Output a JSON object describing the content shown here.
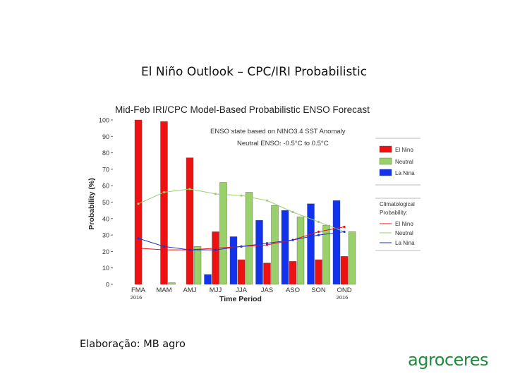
{
  "slide": {
    "title": "El Niño Outlook – CPC/IRI Probabilistic",
    "footer": "Elaboração: MB agro",
    "logo_text": "agroceres",
    "logo_color": "#1f8a3c"
  },
  "chart_data": {
    "type": "bar",
    "title": "Mid-Feb IRI/CPC Model-Based Probabilistic ENSO Forecast",
    "ylabel": "Probability (%)",
    "xlabel": "Time Period",
    "ylim": [
      0,
      100
    ],
    "yticks": [
      0,
      10,
      20,
      30,
      40,
      50,
      60,
      70,
      80,
      90,
      100
    ],
    "categories": [
      "FMA",
      "MAM",
      "AMJ",
      "MJJ",
      "JJA",
      "JAS",
      "ASO",
      "SON",
      "OND"
    ],
    "year_labels": [
      {
        "text": "2016",
        "category": "FMA"
      },
      {
        "text": "2016",
        "category": "OND"
      }
    ],
    "annotation_line1": "ENSO state based on NINO3.4 SST Anomaly",
    "annotation_line2": "Neutral ENSO: -0.5°C to 0.5°C",
    "legend_bars": [
      {
        "name": "El Nino",
        "color": "#ee1111"
      },
      {
        "name": "Neutral",
        "color": "#99d06a"
      },
      {
        "name": "La Nina",
        "color": "#1133ee"
      }
    ],
    "legend_clim_title_1": "Climatological",
    "legend_clim_title_2": "Probability:",
    "legend_lines": [
      {
        "name": "El Nino",
        "color": "#ee1111"
      },
      {
        "name": "Neutral",
        "color": "#99d06a"
      },
      {
        "name": "La Nina",
        "color": "#2233cc"
      }
    ],
    "series": [
      {
        "name": "La Nina",
        "color": "#1133ee",
        "values": [
          0,
          0,
          0,
          6,
          29,
          39,
          45,
          49,
          51
        ]
      },
      {
        "name": "El Nino",
        "color": "#ee1111",
        "values": [
          100,
          99,
          77,
          32,
          15,
          13,
          14,
          15,
          17
        ]
      },
      {
        "name": "Neutral",
        "color": "#99d06a",
        "values": [
          0,
          1,
          23,
          62,
          56,
          48,
          41,
          36,
          32
        ]
      }
    ],
    "climatology": [
      {
        "name": "Neutral",
        "color": "#99d06a",
        "values": [
          49,
          56,
          58,
          55,
          54,
          51,
          44,
          38,
          32
        ]
      },
      {
        "name": "El Nino",
        "color": "#ee1111",
        "values": [
          22,
          21,
          21,
          22,
          23,
          24,
          27,
          32,
          35
        ]
      },
      {
        "name": "La Nina",
        "color": "#2233cc",
        "values": [
          28,
          23,
          21,
          21,
          23,
          25,
          27,
          30,
          32
        ]
      }
    ]
  }
}
